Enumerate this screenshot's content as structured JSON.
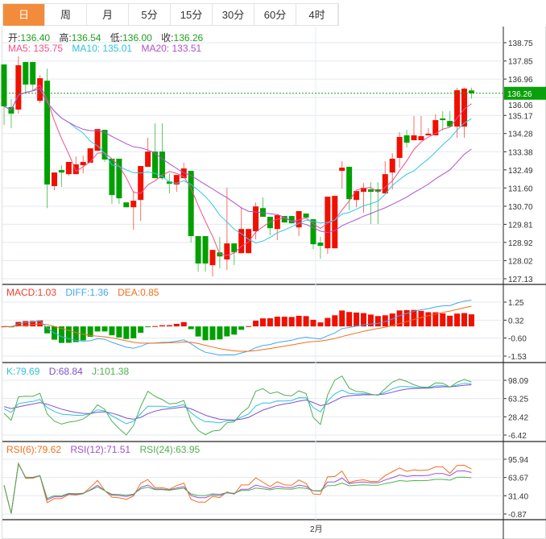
{
  "tabs": [
    {
      "label": "日",
      "active": true
    },
    {
      "label": "周"
    },
    {
      "label": "月"
    },
    {
      "label": "5分"
    },
    {
      "label": "15分"
    },
    {
      "label": "30分"
    },
    {
      "label": "60分"
    },
    {
      "label": "4时"
    }
  ],
  "ohlc": {
    "open_label": "开:",
    "open": "136.40",
    "high_label": "高:",
    "high": "136.54",
    "low_label": "低:",
    "low": "136.00",
    "close_label": "收:",
    "close": "136.26"
  },
  "ma": {
    "ma5": "MA5: 135.75",
    "ma10": "MA10: 135.01",
    "ma20": "MA20: 133.51"
  },
  "macd": {
    "macd": "MACD:1.03",
    "diff": "DIFF:1.36",
    "dea": "DEA:0.85"
  },
  "kdj": {
    "k": "K:79.69",
    "d": "D:68.84",
    "j": "J:101.38"
  },
  "rsi": {
    "rsi6": "RSI(6):79.62",
    "rsi12": "RSI(12):71.51",
    "rsi24": "RSI(24):63.95"
  },
  "current_price": "136.26",
  "x_label": "2月",
  "colors": {
    "up": "#f01000",
    "down": "#00a000",
    "ma5": "#f0508a",
    "ma10": "#30c8e0",
    "ma20": "#b050d0",
    "accent": "#f28c3c"
  },
  "chart_data": {
    "type": "candlestick",
    "price_ticks": [
      "138.75",
      "137.85",
      "136.96",
      "136.06",
      "135.17",
      "134.28",
      "133.38",
      "132.49",
      "131.60",
      "130.70",
      "129.81",
      "128.92",
      "128.02",
      "127.13"
    ],
    "price_range": [
      127.13,
      138.75
    ],
    "macd_ticks": [
      "1.25",
      "0.32",
      "-0.60",
      "-1.53"
    ],
    "macd_range": [
      -1.53,
      1.25
    ],
    "kdj_ticks": [
      "98.09",
      "63.25",
      "28.42",
      "-6.42"
    ],
    "kdj_range": [
      -6.42,
      98.09
    ],
    "rsi_ticks": [
      "95.94",
      "63.67",
      "31.40",
      "-0.87"
    ],
    "rsi_range": [
      -0.87,
      95.94
    ],
    "candles": [
      [
        137.68,
        137.68,
        134.7,
        135.62
      ],
      [
        135.58,
        135.97,
        134.54,
        135.26
      ],
      [
        135.46,
        138.08,
        135.26,
        137.64
      ],
      [
        137.8,
        137.8,
        136.33,
        136.69
      ],
      [
        137.8,
        137.8,
        136.37,
        136.69
      ],
      [
        135.89,
        137.16,
        135.77,
        137.0
      ],
      [
        136.88,
        137.48,
        130.61,
        131.77
      ],
      [
        131.69,
        132.36,
        131.49,
        132.36
      ],
      [
        132.48,
        132.72,
        131.65,
        132.36
      ],
      [
        132.28,
        132.88,
        132.2,
        132.88
      ],
      [
        132.28,
        133.15,
        132.28,
        132.76
      ],
      [
        132.72,
        133.19,
        132.32,
        132.88
      ],
      [
        132.84,
        133.55,
        132.84,
        133.55
      ],
      [
        133.43,
        134.5,
        133.43,
        134.5
      ],
      [
        134.46,
        134.46,
        132.88,
        133.0
      ],
      [
        133.04,
        133.04,
        130.81,
        131.25
      ],
      [
        133.04,
        133.04,
        130.81,
        131.09
      ],
      [
        130.89,
        130.89,
        130.65,
        130.65
      ],
      [
        130.65,
        131.45,
        129.54,
        130.97
      ],
      [
        131.01,
        132.68,
        129.98,
        132.68
      ],
      [
        132.64,
        134.07,
        132.64,
        133.39
      ],
      [
        133.39,
        134.78,
        132.08,
        132.08
      ],
      [
        133.39,
        134.78,
        132.0,
        132.08
      ],
      [
        131.92,
        132.32,
        131.33,
        131.81
      ],
      [
        131.77,
        132.24,
        131.41,
        132.24
      ],
      [
        132.08,
        132.84,
        132.08,
        132.56
      ],
      [
        132.44,
        132.44,
        128.91,
        129.23
      ],
      [
        129.23,
        129.23,
        127.48,
        127.88
      ],
      [
        129.23,
        129.23,
        127.48,
        127.88
      ],
      [
        127.8,
        128.55,
        127.24,
        128.55
      ],
      [
        128.43,
        129.19,
        127.64,
        128.23
      ],
      [
        128.08,
        131.61,
        127.56,
        128.87
      ],
      [
        128.87,
        128.87,
        127.8,
        128.43
      ],
      [
        128.39,
        130.65,
        128.39,
        129.58
      ],
      [
        128.39,
        129.58,
        128.39,
        129.58
      ],
      [
        129.47,
        130.89,
        129.07,
        130.69
      ],
      [
        130.61,
        131.13,
        130.18,
        130.18
      ],
      [
        130.18,
        130.18,
        129.27,
        129.62
      ],
      [
        129.58,
        130.26,
        129.03,
        130.26
      ],
      [
        130.22,
        130.22,
        129.9,
        129.9
      ],
      [
        130.22,
        130.22,
        129.86,
        129.86
      ],
      [
        129.66,
        130.46,
        129.23,
        130.46
      ],
      [
        130.34,
        130.34,
        130.14,
        130.14
      ],
      [
        130.06,
        130.06,
        128.59,
        128.83
      ],
      [
        128.91,
        129.19,
        128.12,
        128.75
      ],
      [
        128.63,
        131.17,
        128.35,
        131.17
      ],
      [
        128.63,
        131.21,
        128.63,
        131.21
      ],
      [
        132.44,
        132.92,
        131.57,
        132.6
      ],
      [
        132.64,
        132.64,
        130.5,
        131.05
      ],
      [
        131.01,
        131.45,
        130.65,
        131.45
      ],
      [
        131.41,
        131.84,
        130.38,
        131.61
      ],
      [
        131.53,
        131.88,
        129.82,
        131.41
      ],
      [
        131.53,
        131.88,
        129.82,
        131.41
      ],
      [
        131.33,
        132.92,
        131.33,
        132.28
      ],
      [
        132.36,
        133.31,
        131.53,
        133.04
      ],
      [
        133.08,
        134.35,
        132.6,
        134.11
      ],
      [
        134.19,
        134.46,
        133.59,
        133.83
      ],
      [
        133.95,
        135.14,
        133.95,
        134.19
      ],
      [
        133.95,
        135.14,
        133.95,
        134.15
      ],
      [
        134.19,
        134.54,
        134.19,
        134.27
      ],
      [
        134.19,
        135.22,
        134.19,
        134.94
      ],
      [
        135.02,
        135.38,
        134.42,
        134.94
      ],
      [
        134.9,
        135.38,
        134.62,
        134.62
      ],
      [
        134.62,
        136.53,
        134.07,
        136.41
      ],
      [
        134.62,
        136.53,
        134.07,
        136.49
      ],
      [
        136.4,
        136.54,
        136.0,
        136.26
      ]
    ]
  }
}
